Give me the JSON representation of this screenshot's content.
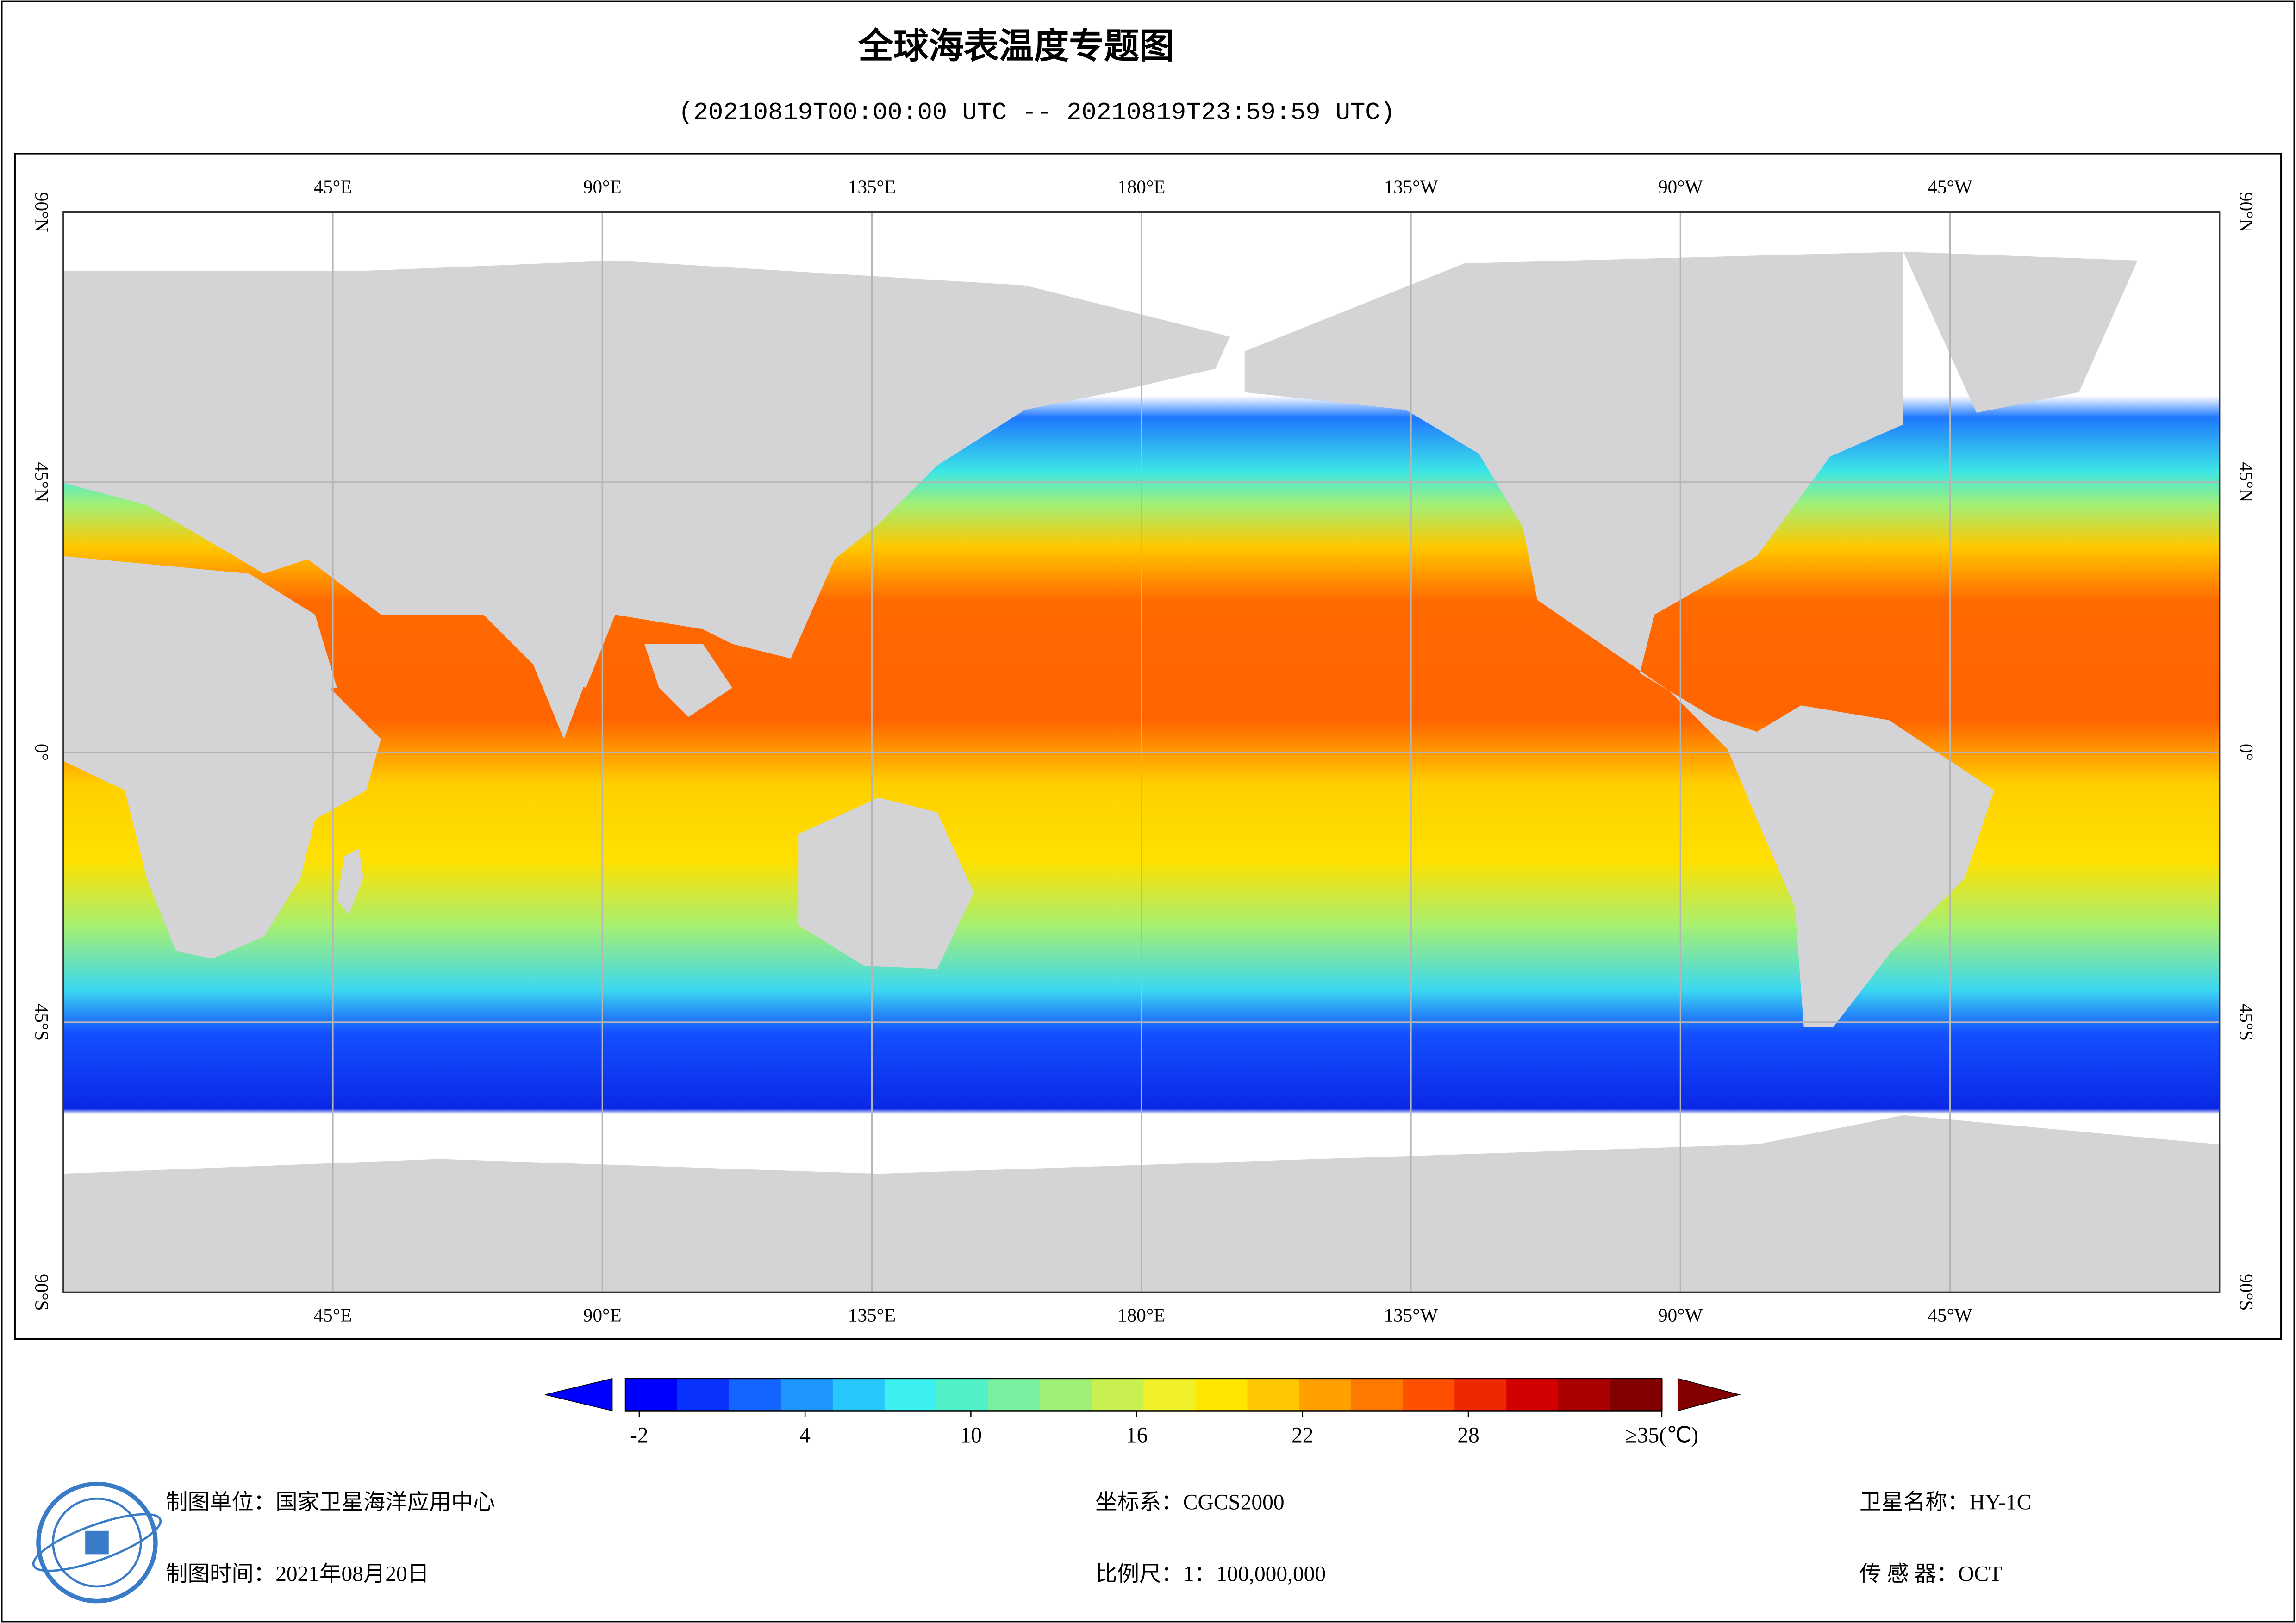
{
  "map": {
    "title": "全球海表温度专题图",
    "subtitle": "(20210819T00:00:00 UTC -- 20210819T23:59:59 UTC)",
    "lon_range": [
      0,
      360
    ],
    "lat_range": [
      -90,
      90
    ],
    "lon_ticks": [
      {
        "value": 45,
        "label": "45°E"
      },
      {
        "value": 90,
        "label": "90°E"
      },
      {
        "value": 135,
        "label": "135°E"
      },
      {
        "value": 180,
        "label": "180°E"
      },
      {
        "value": 225,
        "label": "135°W"
      },
      {
        "value": 270,
        "label": "90°W"
      },
      {
        "value": 315,
        "label": "45°W"
      }
    ],
    "lat_ticks": [
      {
        "value": 90,
        "label": "90°N"
      },
      {
        "value": 45,
        "label": "45°N"
      },
      {
        "value": 0,
        "label": "0°"
      },
      {
        "value": -45,
        "label": "45°S"
      },
      {
        "value": -90,
        "label": "90°S"
      }
    ],
    "colorbar": {
      "range": [
        -2.5,
        35
      ],
      "ticks": [
        -2,
        4,
        10,
        16,
        22,
        28,
        {
          "value": 35,
          "label": "≥35(℃)"
        }
      ],
      "colors": [
        "#0000ff",
        "#0a32ff",
        "#1464ff",
        "#1e96ff",
        "#28c8ff",
        "#3cf0f0",
        "#50f0c8",
        "#78f0a0",
        "#a0f078",
        "#c8f050",
        "#f0f028",
        "#ffe600",
        "#ffc800",
        "#ffa000",
        "#ff7800",
        "#ff5000",
        "#f02800",
        "#d20000",
        "#aa0000",
        "#820000"
      ]
    },
    "footer": {
      "unit": "制图单位：国家卫星海洋应用中心",
      "time": "制图时间：2021年08月20日",
      "crs": "坐标系：CGCS2000",
      "scale": "比例尺：1：100,000,000",
      "satellite": "卫星名称：HY-1C",
      "sensor": "传 感 器：OCT"
    }
  }
}
